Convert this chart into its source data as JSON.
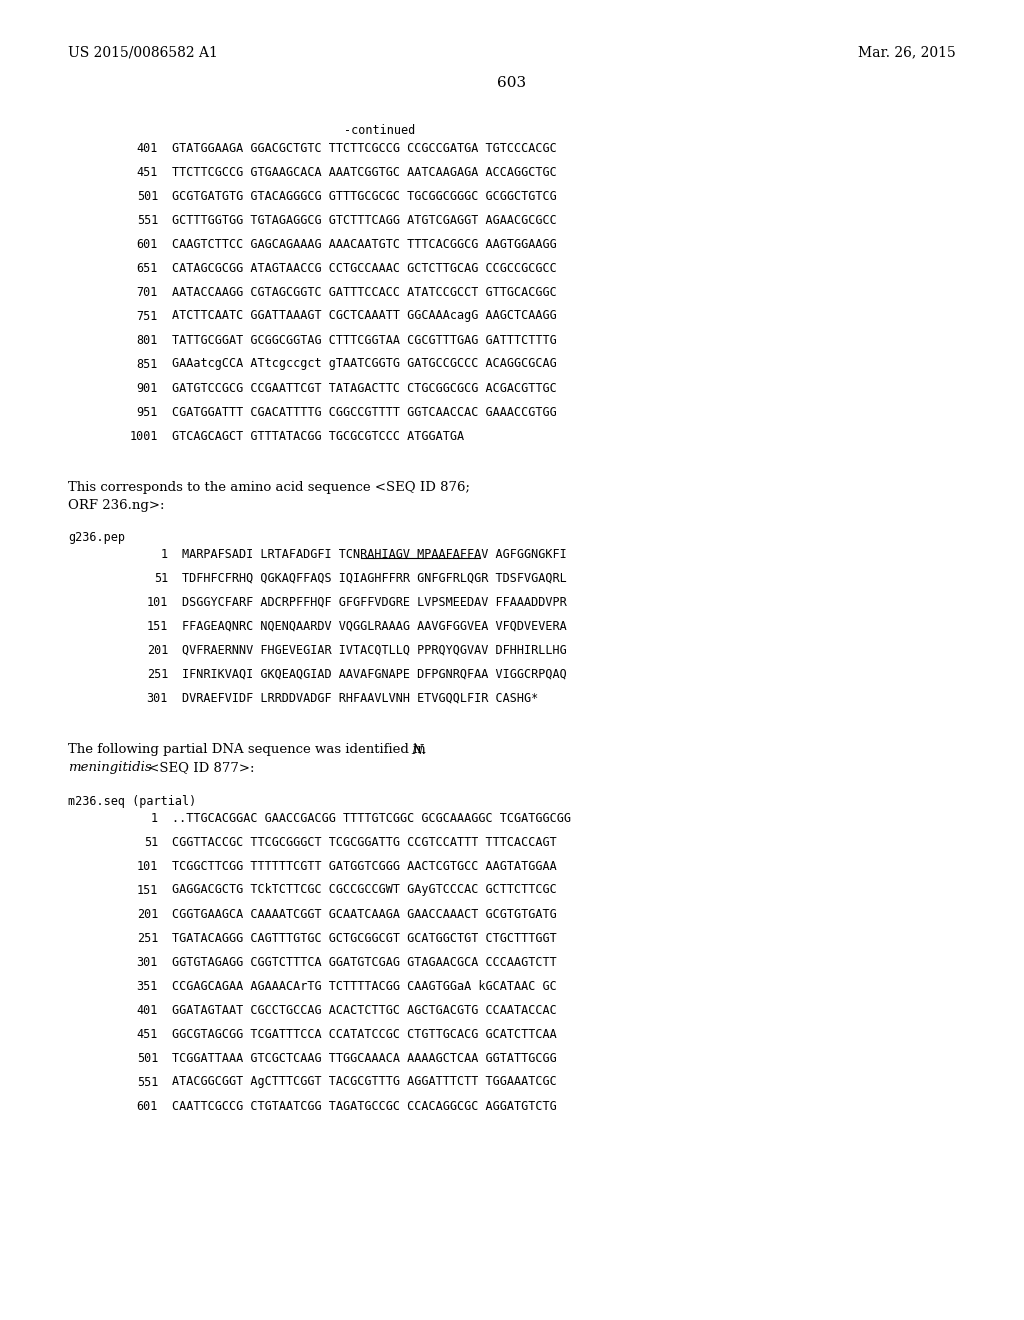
{
  "header_left": "US 2015/0086582 A1",
  "header_right": "Mar. 26, 2015",
  "page_number": "603",
  "continued_label": "-continued",
  "background_color": "#ffffff",
  "text_color": "#000000",
  "dna_sequences_continued": [
    [
      "401",
      "GTATGGAAGA GGACGCTGTC TTCTTCGCCG CCGCCGATGA TGTCCCACGC"
    ],
    [
      "451",
      "TTCTTCGCCG GTGAAGCACA AAATCGGTGC AATCAAGAGA ACCAGGCTGC"
    ],
    [
      "501",
      "GCGTGATGTG GTACAGGGCG GTTTGCGCGC TGCGGCGGGC GCGGCTGTCG"
    ],
    [
      "551",
      "GCTTTGGTGG TGTAGAGGCG GTCTTTCAGG ATGTCGAGGT AGAACGCGCC"
    ],
    [
      "601",
      "CAAGTCTTCC GAGCAGAAAG AAACAATGTC TTTCACGGCG AAGTGGAAGG"
    ],
    [
      "651",
      "CATAGCGCGG ATAGTAACCG CCTGCCAAAC GCTCTTGCAG CCGCCGCGCC"
    ],
    [
      "701",
      "AATACCAAGG CGTAGCGGTC GATTTCCACC ATATCCGCCT GTTGCACGGC"
    ],
    [
      "751",
      "ATCTTCAATC GGATTAAAGT CGCTCAAATT GGCAAAcagG AAGCTCAAGG"
    ],
    [
      "801",
      "TATTGCGGAT GCGGCGGTAG CTTTCGGTAA CGCGTTTGAG GATTTCTTTG"
    ],
    [
      "851",
      "GAAatcgCCA ATtcgccgct gTAATCGGTG GATGCCGCCC ACAGGCGCAG"
    ],
    [
      "901",
      "GATGTCCGCG CCGAATTCGT TATAGACTTC CTGCGGCGCG ACGACGTTGC"
    ],
    [
      "951",
      "CGATGGATTT CGACATTTTG CGGCCGTTTT GGTCAACCAC GAAACCGTGG"
    ],
    [
      "1001",
      "GTCAGCAGCT GTTTATACGG TGCGCGTCCC ATGGATGA"
    ]
  ],
  "para1_line1": "This corresponds to the amino acid sequence <SEQ ID 876;",
  "para1_line2": "ORF 236.ng>:",
  "pep_label": "g236.pep",
  "pep_sequences": [
    [
      "1",
      "MARPAFSADI LRTAFADGFI TCNRAHIAGV MPAAFAFFAV AGFGGNGKFI"
    ],
    [
      "51",
      "TDFHFCFRHQ QGKAQFFAQS IQIAGHFFRR GNFGFRLQGR TDSFVGAQRL"
    ],
    [
      "101",
      "DSGGYCFARF ADCRPFFHQF GFGFFVDGRE LVPSMEEDAV FFAAADDVPR"
    ],
    [
      "151",
      "FFAGEAQNRC NQENQAARDV VQGGLRAAAG AAVGFGGVEA VFQDVEVERA"
    ],
    [
      "201",
      "QVFRAERNNV FHGEVEGIAR IVTACQTLLQ PPRQYQGVAV DFHHIRLLHG"
    ],
    [
      "251",
      "IFNRIKVAQI GKQEAQGIAD AAVAFGNAPE DFPGNRQFAA VIGGCRPQAQ"
    ],
    [
      "301",
      "DVRAEFVIDF LRRDDVADGF RHFAAVLVNH ETVGQQLFIR CASHG*"
    ]
  ],
  "para2_line1_normal": "The following partial DNA sequence was identified in ",
  "para2_line1_italic": "N.",
  "para2_line2_italic": "meningitidis",
  "para2_line2_normal": " <SEQ ID 877>:",
  "seq_label": "m236.seq (partial)",
  "dna_sequences_new": [
    [
      "1",
      "..TTGCACGGAC GAACCGACGG TTTTGTCGGC GCGCAAAGGC TCGATGGCGG"
    ],
    [
      "51",
      "CGGTTACCGC TTCGCGGGCT TCGCGGATTG CCGTCCATTT TTTCACCAGT"
    ],
    [
      "101",
      "TCGGCTTCGG TTTTTTCGTT GATGGTCGGG AACTCGTGCC AAGTATGGAA"
    ],
    [
      "151",
      "GAGGACGCTG TCkTCTTCGC CGCCGCCGWT GAyGTCCCAC GCTTCTTCGC"
    ],
    [
      "201",
      "CGGTGAAGCA CAAAATCGGT GCAATCAAGA GAACCAAACT GCGTGTGATG"
    ],
    [
      "251",
      "TGATACAGGG CAGTTTGTGC GCTGCGGCGT GCATGGCTGT CTGCTTTGGT"
    ],
    [
      "301",
      "GGTGTAGAGG CGGTCTTTCA GGATGTCGAG GTAGAACGCA CCCAAGTCTT"
    ],
    [
      "351",
      "CCGAGCAGAA AGAAACArTG TCTTTTACGG CAAGTGGaA kGCATAAC GC"
    ],
    [
      "401",
      "GGATAGTAAT CGCCTGCCAG ACACTCTTGC AGCTGACGTG CCAATACCAC"
    ],
    [
      "451",
      "GGCGTAGCGG TCGATTTCCA CCATATCCGC CTGTTGCACG GCATCTTCAA"
    ],
    [
      "501",
      "TCGGATTAAA GTCGCTCAAG TTGGCAAACA AAAAGCTCAA GGTATTGCGG"
    ],
    [
      "551",
      "ATACGGCGGT AgCTTTCGGT TACGCGTTTG AGGATTTCTT TGGAAATCGC"
    ],
    [
      "601",
      "CAATTCGCCG CTGTAATCGG TAGATGCCGC CCACAGGCGC AGGATGTCTG"
    ]
  ]
}
